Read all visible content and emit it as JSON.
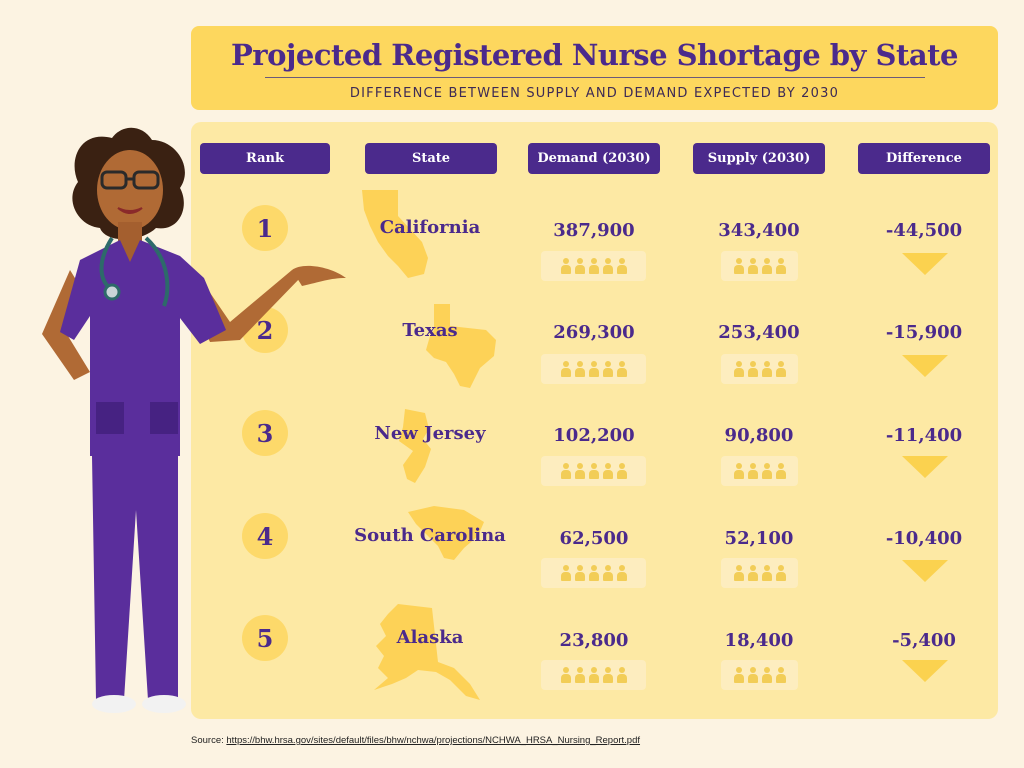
{
  "header": {
    "title": "Projected Registered Nurse Shortage by State",
    "subtitle": "DIFFERENCE BETWEEN SUPPLY AND DEMAND EXPECTED BY 2030"
  },
  "columns": [
    "Rank",
    "State",
    "Demand (2030)",
    "Supply (2030)",
    "Difference"
  ],
  "rows": [
    {
      "rank": "1",
      "state": "California",
      "demand": "387,900",
      "supply": "343,400",
      "difference": "-44,500"
    },
    {
      "rank": "2",
      "state": "Texas",
      "demand": "269,300",
      "supply": "253,400",
      "difference": "-15,900"
    },
    {
      "rank": "3",
      "state": "New Jersey",
      "demand": "102,200",
      "supply": "90,800",
      "difference": "-11,400"
    },
    {
      "rank": "4",
      "state": "South Carolina",
      "demand": "62,500",
      "supply": "52,100",
      "difference": "-10,400"
    },
    {
      "rank": "5",
      "state": "Alaska",
      "demand": "23,800",
      "supply": "18,400",
      "difference": "-5,400"
    }
  ],
  "chart_data": {
    "type": "table",
    "title": "Projected Registered Nurse Shortage by State",
    "subtitle": "DIFFERENCE BETWEEN SUPPLY AND DEMAND EXPECTED BY 2030",
    "columns": [
      "Rank",
      "State",
      "Demand (2030)",
      "Supply (2030)",
      "Difference"
    ],
    "categories": [
      "California",
      "Texas",
      "New Jersey",
      "South Carolina",
      "Alaska"
    ],
    "series": [
      {
        "name": "Demand (2030)",
        "values": [
          387900,
          269300,
          102200,
          62500,
          23800
        ]
      },
      {
        "name": "Supply (2030)",
        "values": [
          343400,
          253400,
          90800,
          52100,
          18400
        ]
      },
      {
        "name": "Difference",
        "values": [
          -44500,
          -15900,
          -11400,
          -10400,
          -5400
        ]
      }
    ],
    "pictogram": {
      "demand_icons_per_row": 5,
      "supply_icons_per_row": 4
    }
  },
  "source": {
    "label": "Source:",
    "url": "https://bhw.hrsa.gov/sites/default/files/bhw/nchwa/projections/NCHWA_HRSA_Nursing_Report.pdf"
  },
  "colors": {
    "purple": "#4b2a8c",
    "yellow": "#fdd75e",
    "panel": "#fde9a4",
    "background": "#fcf3e2",
    "accent": "#fbd24f"
  },
  "icons": {
    "illustration": "nurse-illustration",
    "pictogram": "nurse-icon",
    "arrow": "down-arrow-icon"
  }
}
